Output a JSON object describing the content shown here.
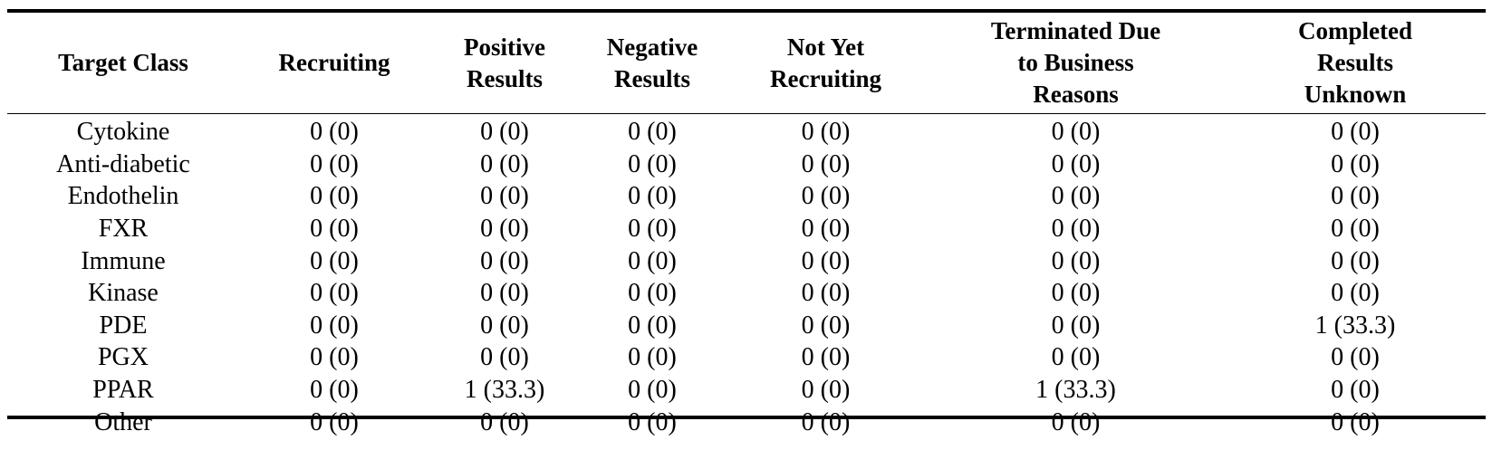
{
  "table": {
    "columns": [
      {
        "lines": [
          "Target Class"
        ]
      },
      {
        "lines": [
          "Recruiting"
        ]
      },
      {
        "lines": [
          "Positive",
          "Results"
        ]
      },
      {
        "lines": [
          "Negative",
          "Results"
        ]
      },
      {
        "lines": [
          "Not Yet",
          "Recruiting"
        ]
      },
      {
        "lines": [
          "Terminated Due",
          "to Business",
          "Reasons"
        ]
      },
      {
        "lines": [
          "Completed",
          "Results",
          "Unknown"
        ]
      }
    ],
    "rows": [
      {
        "target_class": "Cytokine",
        "recruiting": "0 (0)",
        "positive_results": "0 (0)",
        "negative_results": "0 (0)",
        "not_yet_recruiting": "0 (0)",
        "terminated_business": "0 (0)",
        "completed_unknown": "0 (0)"
      },
      {
        "target_class": "Anti-diabetic",
        "recruiting": "0 (0)",
        "positive_results": "0 (0)",
        "negative_results": "0 (0)",
        "not_yet_recruiting": "0 (0)",
        "terminated_business": "0 (0)",
        "completed_unknown": "0 (0)"
      },
      {
        "target_class": "Endothelin",
        "recruiting": "0 (0)",
        "positive_results": "0 (0)",
        "negative_results": "0 (0)",
        "not_yet_recruiting": "0 (0)",
        "terminated_business": "0 (0)",
        "completed_unknown": "0 (0)"
      },
      {
        "target_class": "FXR",
        "recruiting": "0 (0)",
        "positive_results": "0 (0)",
        "negative_results": "0 (0)",
        "not_yet_recruiting": "0 (0)",
        "terminated_business": "0 (0)",
        "completed_unknown": "0 (0)"
      },
      {
        "target_class": "Immune",
        "recruiting": "0 (0)",
        "positive_results": "0 (0)",
        "negative_results": "0 (0)",
        "not_yet_recruiting": "0 (0)",
        "terminated_business": "0 (0)",
        "completed_unknown": "0 (0)"
      },
      {
        "target_class": "Kinase",
        "recruiting": "0 (0)",
        "positive_results": "0 (0)",
        "negative_results": "0 (0)",
        "not_yet_recruiting": "0 (0)",
        "terminated_business": "0 (0)",
        "completed_unknown": "0 (0)"
      },
      {
        "target_class": "PDE",
        "recruiting": "0 (0)",
        "positive_results": "0 (0)",
        "negative_results": "0 (0)",
        "not_yet_recruiting": "0 (0)",
        "terminated_business": "0 (0)",
        "completed_unknown": "1 (33.3)"
      },
      {
        "target_class": "PGX",
        "recruiting": "0 (0)",
        "positive_results": "0 (0)",
        "negative_results": "0 (0)",
        "not_yet_recruiting": "0 (0)",
        "terminated_business": "0 (0)",
        "completed_unknown": "0 (0)"
      },
      {
        "target_class": "PPAR",
        "recruiting": "0 (0)",
        "positive_results": "1 (33.3)",
        "negative_results": "0 (0)",
        "not_yet_recruiting": "0 (0)",
        "terminated_business": "1 (33.3)",
        "completed_unknown": "0 (0)"
      },
      {
        "target_class": "Other",
        "recruiting": "0 (0)",
        "positive_results": "0 (0)",
        "negative_results": "0 (0)",
        "not_yet_recruiting": "0 (0)",
        "terminated_business": "0 (0)",
        "completed_unknown": "0 (0)"
      }
    ]
  }
}
